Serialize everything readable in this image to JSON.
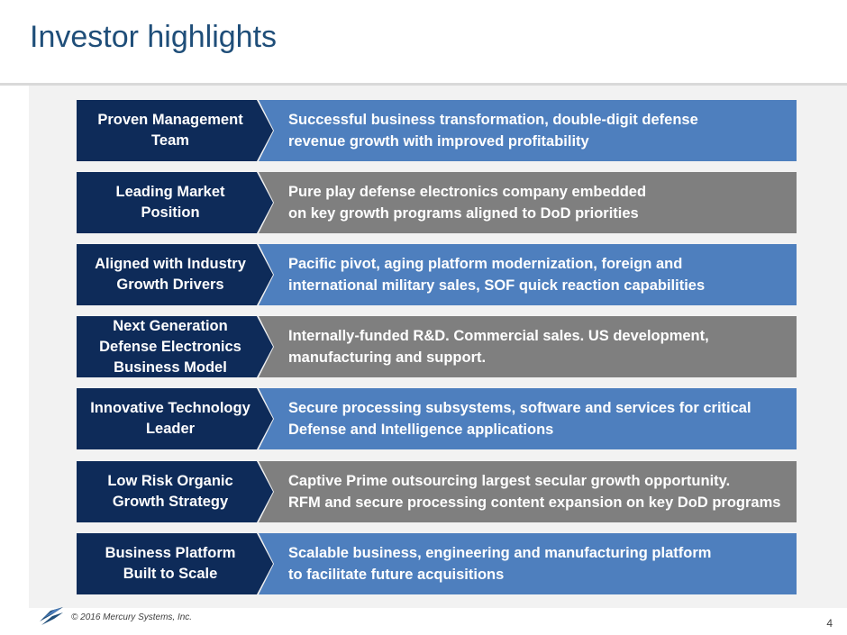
{
  "title": "Investor highlights",
  "colors": {
    "label_bg": "#0e2b59",
    "blue": "#4e7fbe",
    "gray": "#7f7f7f",
    "title": "#1f4e79"
  },
  "rows": [
    {
      "label": "Proven Management\nTeam",
      "text": "Successful business transformation, double-digit defense\nrevenue growth with improved profitability",
      "color": "blue"
    },
    {
      "label": "Leading Market\nPosition",
      "text": "Pure play defense electronics company embedded\non key growth programs aligned to DoD priorities",
      "color": "gray"
    },
    {
      "label": "Aligned with Industry\nGrowth Drivers",
      "text": "Pacific pivot, aging platform modernization, foreign and\ninternational military sales, SOF quick reaction capabilities",
      "color": "blue"
    },
    {
      "label": "Next Generation\nDefense Electronics\nBusiness Model",
      "text": "Internally-funded R&D. Commercial sales. US development,\nmanufacturing and support.",
      "color": "gray"
    },
    {
      "label": "Innovative Technology\nLeader",
      "text": "Secure processing subsystems, software and services for critical\nDefense and Intelligence applications",
      "color": "blue"
    },
    {
      "label": "Low Risk Organic\nGrowth Strategy",
      "text": "Captive Prime outsourcing largest secular growth opportunity.\nRFM and secure processing content expansion on key DoD programs",
      "color": "gray"
    },
    {
      "label": "Business Platform\nBuilt to Scale",
      "text": "Scalable business, engineering and manufacturing platform\nto facilitate future acquisitions",
      "color": "blue"
    }
  ],
  "footer": {
    "logo_icon": "mercury-logo-icon",
    "copyright": "© 2016 Mercury Systems, Inc.",
    "page_number": "4"
  }
}
